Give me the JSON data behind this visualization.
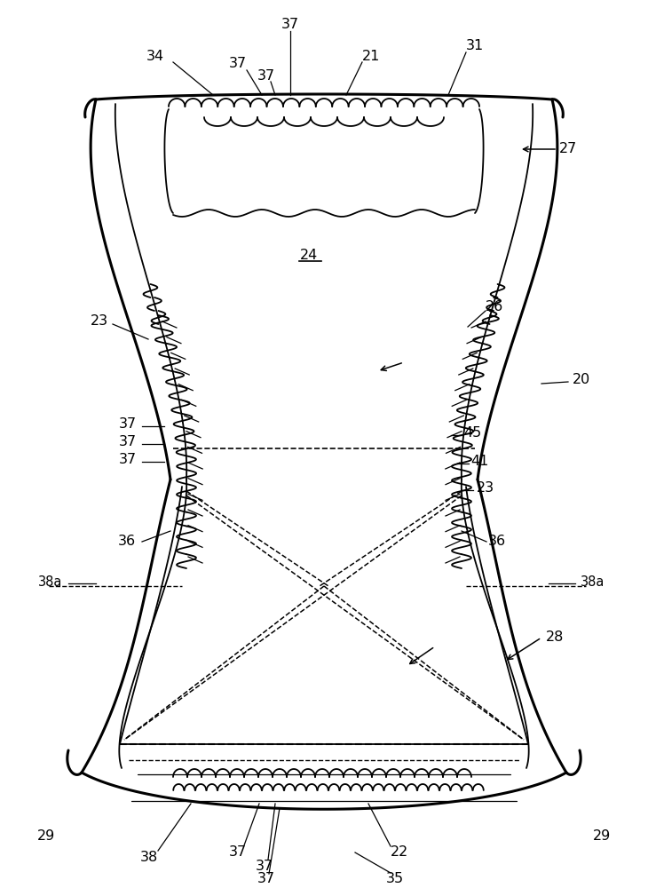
{
  "fig_width": 7.3,
  "fig_height": 10.0,
  "dpi": 100,
  "bg_color": "#ffffff",
  "line_color": "#000000"
}
